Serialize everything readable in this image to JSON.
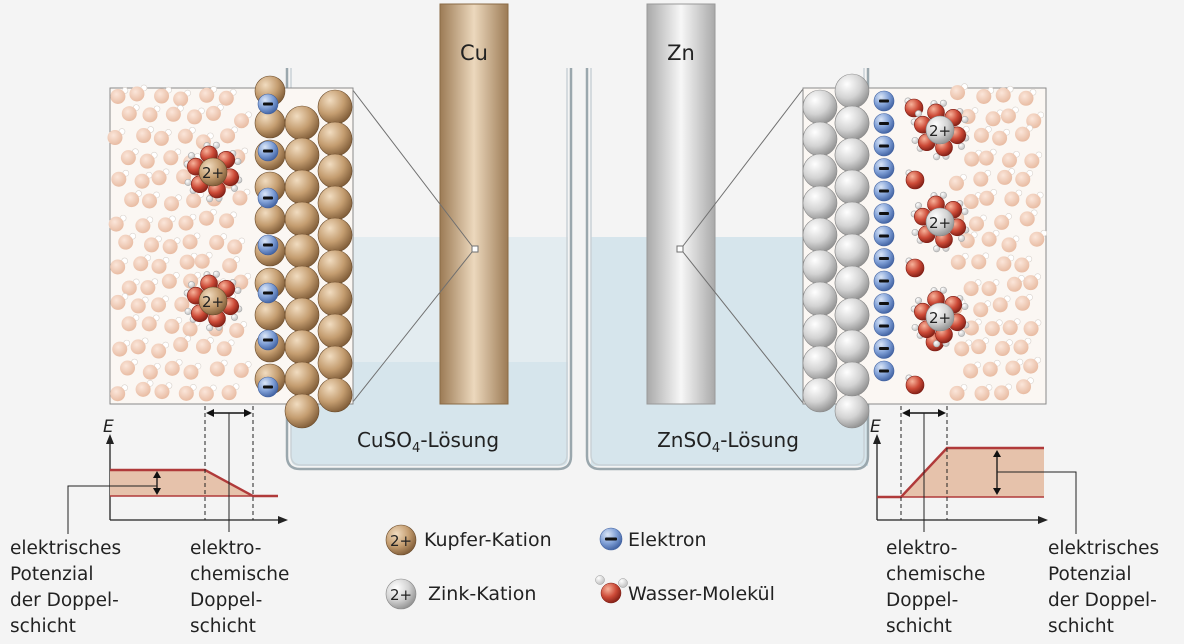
{
  "electrodes": {
    "copper": {
      "symbol": "Cu"
    },
    "zinc": {
      "symbol": "Zn"
    }
  },
  "solutions": {
    "left": {
      "formula": "CuSO",
      "subscript": "4",
      "suffix": "-Lösung"
    },
    "right": {
      "formula": "ZnSO",
      "subscript": "4",
      "suffix": "-Lösung"
    }
  },
  "ions": {
    "charge_label": "2+",
    "electron_sign": "−"
  },
  "graph": {
    "axis_label": "E"
  },
  "labels": {
    "left_potential": [
      "elektrisches",
      "Potenzial",
      "der Doppel-",
      "schicht"
    ],
    "left_layer": [
      "elektro-",
      "chemische",
      "Doppel-",
      "schicht"
    ],
    "right_layer": [
      "elektro-",
      "chemische",
      "Doppel-",
      "schicht"
    ],
    "right_potential": [
      "elektrisches",
      "Potenzial",
      "der Doppel-",
      "schicht"
    ]
  },
  "legend": {
    "copper_cation": "Kupfer-Kation",
    "zinc_cation": "Zink-Kation",
    "electron": "Elektron",
    "water": "Wasser-Molekül",
    "cation_symbol": "2+"
  },
  "colors": {
    "copper": "#b5916a",
    "zinc": "#d4d4d4",
    "electron": "#6e8fc8",
    "water_oxygen": "#c8453a",
    "potential_line": "#b03a3a",
    "solution": "#d6e5ec",
    "background": "#f4f4f4"
  }
}
